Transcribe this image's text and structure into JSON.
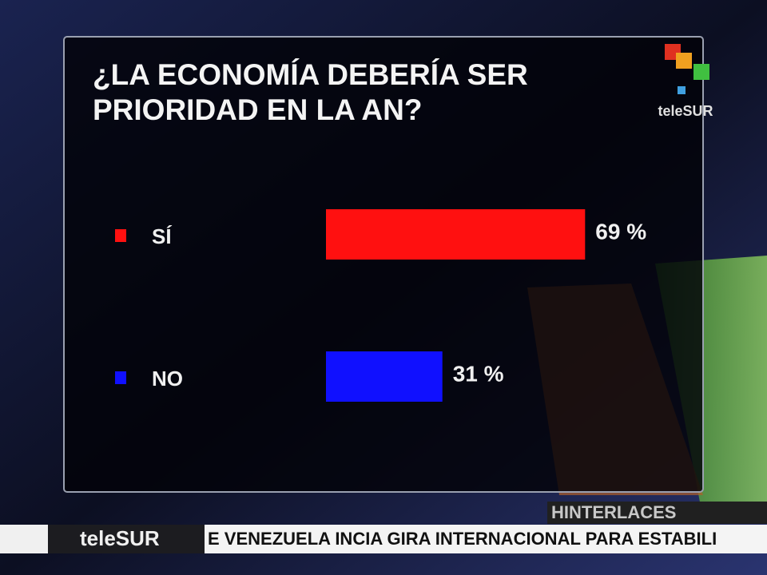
{
  "chart_data": {
    "type": "bar",
    "orientation": "horizontal",
    "title": "¿LA ECONOMÍA DEBERÍA SER PRIORIDAD EN LA AN?",
    "title_lines": [
      "¿LA ECONOMÍA DEBERÍA SER",
      "PRIORIDAD EN LA AN?"
    ],
    "categories": [
      "SÍ",
      "NO"
    ],
    "values": [
      69,
      31
    ],
    "value_labels": [
      "69 %",
      "31 %"
    ],
    "colors": [
      "#ff1010",
      "#1010ff"
    ]
  },
  "logo": "teleSUR",
  "source": "HINTERLACES",
  "ticker": {
    "channel": "teleSUR",
    "text": "E VENEZUELA INCIA GIRA INTERNACIONAL PARA ESTABILI"
  }
}
